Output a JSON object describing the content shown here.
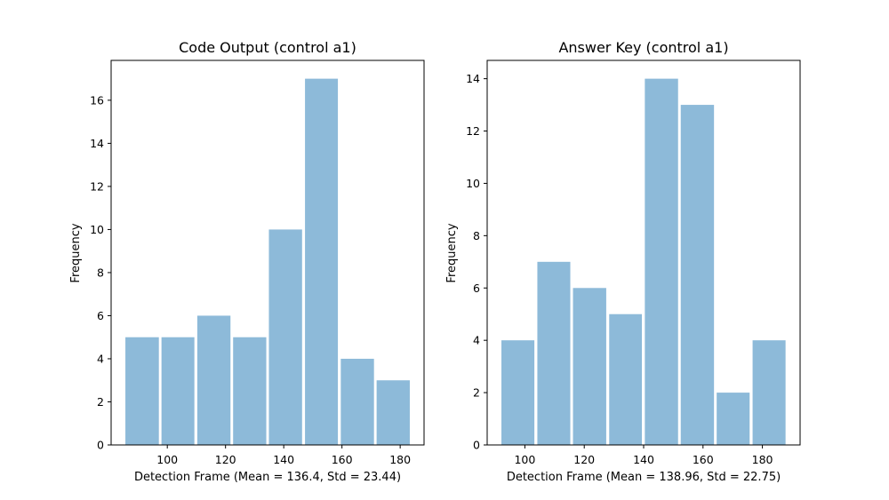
{
  "chart_data": [
    {
      "type": "bar",
      "title": "Code Output (control a1)",
      "xlabel": "Detection Frame (Mean = 136.4, Std = 23.44)",
      "ylabel": "Frequency",
      "bins": [
        {
          "start": 85.6,
          "end": 97.1,
          "value": 5
        },
        {
          "start": 98.0,
          "end": 109.3,
          "value": 5
        },
        {
          "start": 110.3,
          "end": 121.7,
          "value": 6
        },
        {
          "start": 122.6,
          "end": 134.0,
          "value": 5
        },
        {
          "start": 134.9,
          "end": 146.3,
          "value": 10
        },
        {
          "start": 147.3,
          "end": 158.6,
          "value": 17
        },
        {
          "start": 159.6,
          "end": 171.0,
          "value": 4
        },
        {
          "start": 171.9,
          "end": 183.3,
          "value": 3
        }
      ],
      "xlim": [
        80.7,
        188.2
      ],
      "ylim": [
        0,
        17.85
      ],
      "xticks": [
        100,
        120,
        140,
        160,
        180
      ],
      "yticks": [
        0,
        2,
        4,
        6,
        8,
        10,
        12,
        14,
        16
      ],
      "bar_color": "#8dbad9",
      "grid": false
    },
    {
      "type": "bar",
      "title": "Answer Key (control a1)",
      "xlabel": "Detection Frame (Mean = 138.96, Std = 22.75)",
      "ylabel": "Frequency",
      "bins": [
        {
          "start": 92.1,
          "end": 103.2,
          "value": 4
        },
        {
          "start": 104.2,
          "end": 115.3,
          "value": 7
        },
        {
          "start": 116.2,
          "end": 127.4,
          "value": 6
        },
        {
          "start": 128.4,
          "end": 139.4,
          "value": 5
        },
        {
          "start": 140.4,
          "end": 151.6,
          "value": 14
        },
        {
          "start": 152.5,
          "end": 163.7,
          "value": 13
        },
        {
          "start": 164.6,
          "end": 175.7,
          "value": 2
        },
        {
          "start": 176.7,
          "end": 187.8,
          "value": 4
        }
      ],
      "xlim": [
        87.3,
        192.7
      ],
      "ylim": [
        0,
        14.7
      ],
      "xticks": [
        100,
        120,
        140,
        160,
        180
      ],
      "yticks": [
        0,
        2,
        4,
        6,
        8,
        10,
        12,
        14
      ],
      "bar_color": "#8dbad9",
      "grid": false
    }
  ]
}
